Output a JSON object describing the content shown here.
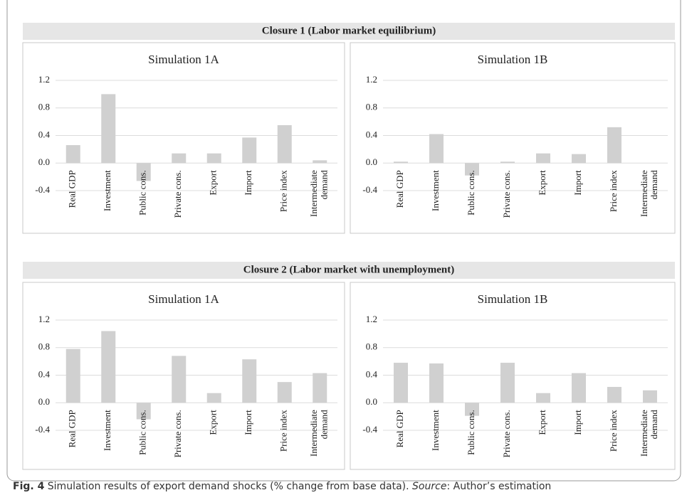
{
  "sections": [
    {
      "title": "Closure 1 (Labor market equilibrium)"
    },
    {
      "title": "Closure 2 (Labor market with unemployment)"
    }
  ],
  "caption": {
    "label": "Fig. 4",
    "text": " Simulation results of export demand shocks (% change from base data). ",
    "source_label": "Source",
    "source_text": ": Author’s estimation"
  },
  "chart_data": [
    {
      "type": "bar",
      "title": "Simulation 1A",
      "categories": [
        "Real GDP",
        "Investment",
        "Public cons.",
        "Private cons.",
        "Export",
        "Import",
        "Price index",
        "Intermediate\ndemand"
      ],
      "values": [
        0.26,
        1.0,
        -0.26,
        0.14,
        0.14,
        0.37,
        0.55,
        0.04
      ],
      "color": "#d0d0d0",
      "ylim": [
        -0.4,
        1.2
      ],
      "yticks": [
        1.2,
        0.8,
        0.4,
        {
          "value": 0,
          "label": "0.0"
        },
        -0.4
      ],
      "grid": true
    },
    {
      "type": "bar",
      "title": "Simulation 1B",
      "categories": [
        "Real GDP",
        "Investment",
        "Public cons.",
        "Private cons.",
        "Export",
        "Import",
        "Price index",
        "Intermediate\ndemand"
      ],
      "values": [
        0.02,
        0.42,
        -0.18,
        0.02,
        0.14,
        0.13,
        0.52,
        0.0
      ],
      "color": "#d0d0d0",
      "ylim": [
        -0.4,
        1.2
      ],
      "yticks": [
        1.2,
        0.8,
        0.4,
        {
          "value": 0,
          "label": "0.0"
        },
        -0.4
      ],
      "grid": true
    },
    {
      "type": "bar",
      "title": "Simulation 1A",
      "categories": [
        "Real GDP",
        "Investment",
        "Public cons.",
        "Private cons.",
        "Export",
        "Import",
        "Price index",
        "Intermediate\ndemand"
      ],
      "values": [
        0.78,
        1.04,
        -0.24,
        0.68,
        0.14,
        0.63,
        0.3,
        0.43
      ],
      "color": "#d0d0d0",
      "ylim": [
        -0.4,
        1.2
      ],
      "yticks": [
        1.2,
        0.8,
        0.4,
        {
          "value": 0,
          "label": "0.0"
        },
        -0.4
      ],
      "grid": true
    },
    {
      "type": "bar",
      "title": "Simulation 1B",
      "categories": [
        "Real GDP",
        "Investment",
        "Public cons.",
        "Private cons.",
        "Export",
        "Import",
        "Price index",
        "Intermediate\ndemand"
      ],
      "values": [
        0.58,
        0.57,
        -0.19,
        0.58,
        0.14,
        0.43,
        0.23,
        0.18
      ],
      "color": "#d0d0d0",
      "ylim": [
        -0.4,
        1.2
      ],
      "yticks": [
        1.2,
        0.8,
        0.4,
        {
          "value": 0,
          "label": "0.0"
        },
        -0.4
      ],
      "grid": true
    }
  ]
}
